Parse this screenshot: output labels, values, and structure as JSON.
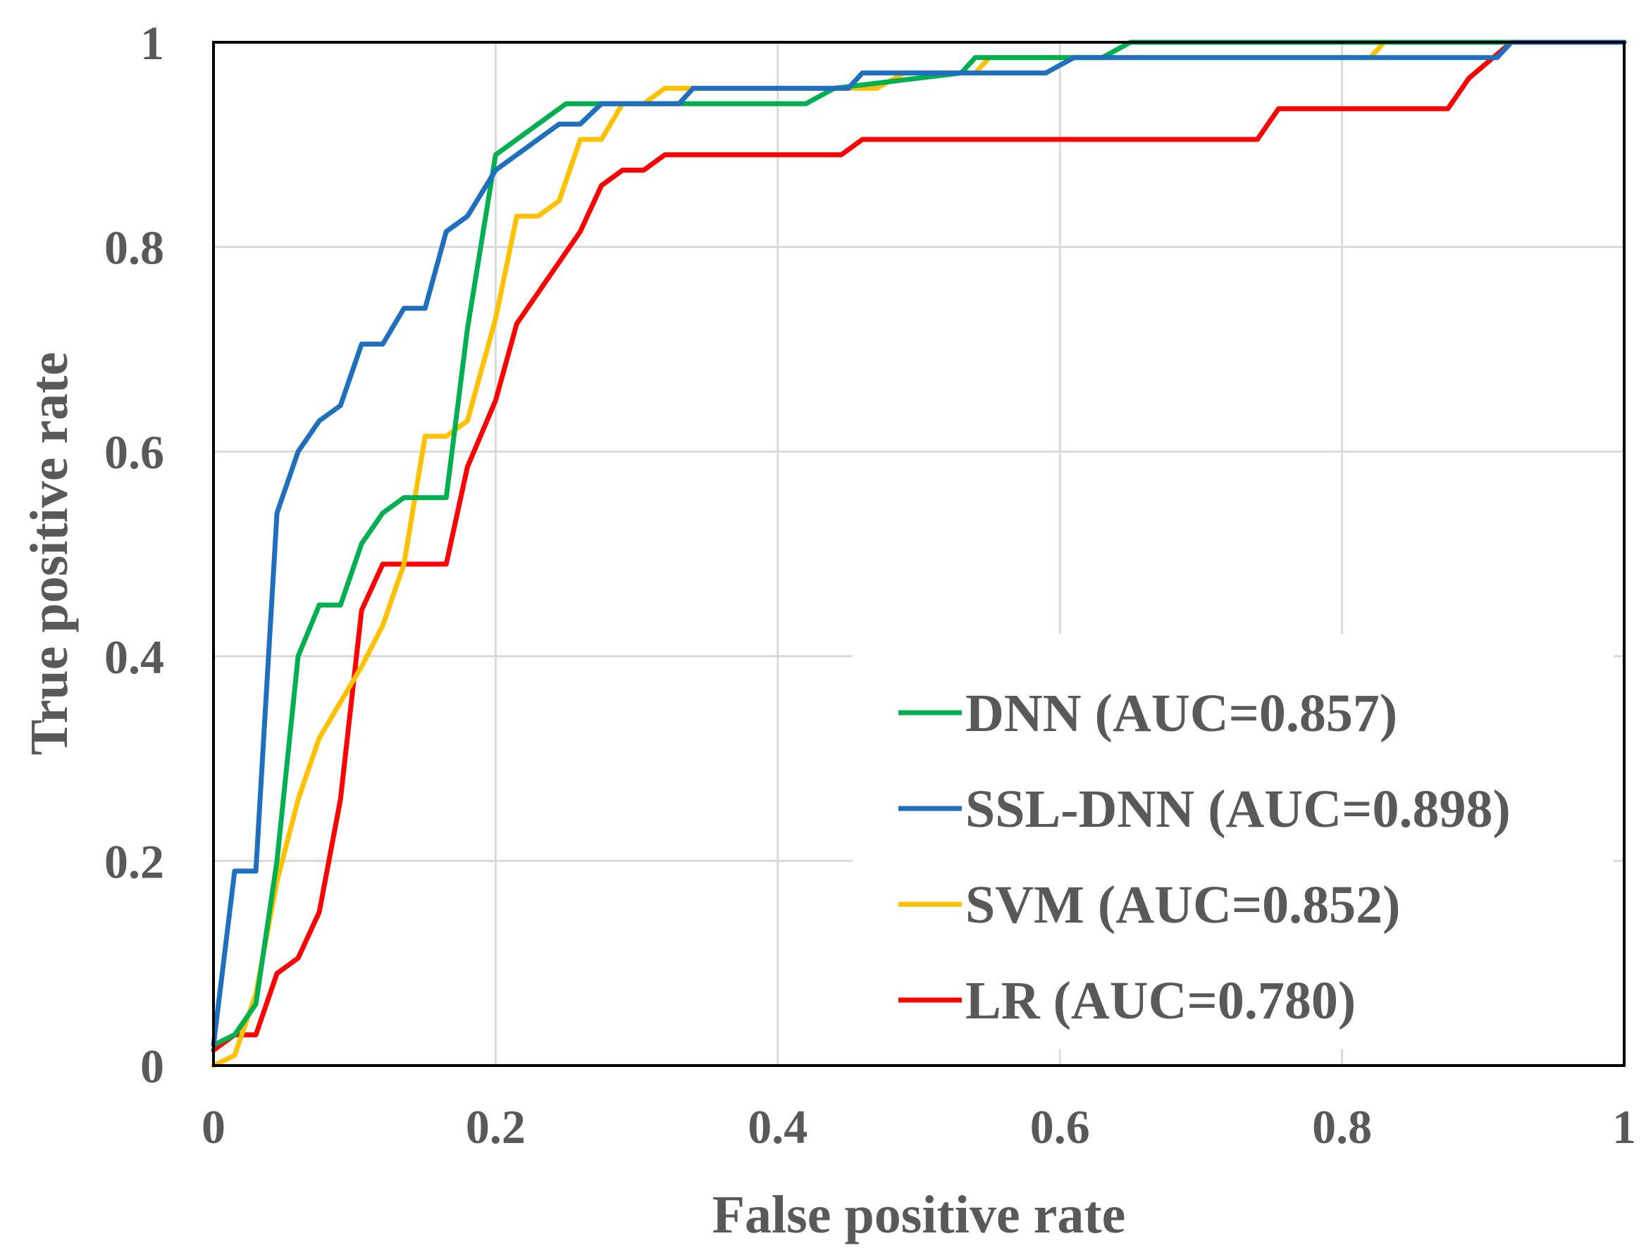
{
  "chart_data": {
    "type": "line",
    "title": "",
    "xlabel": "False positive rate",
    "ylabel": "True positive rate",
    "xlim": [
      0,
      1
    ],
    "ylim": [
      0,
      1
    ],
    "x_ticks": [
      "0",
      "0.2",
      "0.4",
      "0.6",
      "0.8",
      "1"
    ],
    "y_ticks": [
      "0",
      "0.2",
      "0.4",
      "0.6",
      "0.8",
      "1"
    ],
    "grid": true,
    "legend_position": "bottom-right",
    "series": [
      {
        "name": "DNN (AUC=0.857)",
        "color": "#00b050",
        "points": [
          [
            0,
            0.02
          ],
          [
            0.015,
            0.03
          ],
          [
            0.03,
            0.06
          ],
          [
            0.045,
            0.2
          ],
          [
            0.06,
            0.4
          ],
          [
            0.075,
            0.45
          ],
          [
            0.09,
            0.45
          ],
          [
            0.105,
            0.51
          ],
          [
            0.12,
            0.54
          ],
          [
            0.135,
            0.555
          ],
          [
            0.165,
            0.555
          ],
          [
            0.18,
            0.72
          ],
          [
            0.2,
            0.89
          ],
          [
            0.25,
            0.94
          ],
          [
            0.42,
            0.94
          ],
          [
            0.44,
            0.955
          ],
          [
            0.53,
            0.97
          ],
          [
            0.54,
            0.985
          ],
          [
            0.63,
            0.985
          ],
          [
            0.65,
            1
          ],
          [
            1,
            1
          ]
        ]
      },
      {
        "name": "SSL-DNN (AUC=0.898)",
        "color": "#1f6fbf",
        "points": [
          [
            0,
            0.02
          ],
          [
            0.015,
            0.19
          ],
          [
            0.03,
            0.19
          ],
          [
            0.045,
            0.54
          ],
          [
            0.06,
            0.6
          ],
          [
            0.075,
            0.63
          ],
          [
            0.09,
            0.645
          ],
          [
            0.105,
            0.705
          ],
          [
            0.12,
            0.705
          ],
          [
            0.135,
            0.74
          ],
          [
            0.15,
            0.74
          ],
          [
            0.165,
            0.815
          ],
          [
            0.18,
            0.83
          ],
          [
            0.2,
            0.875
          ],
          [
            0.245,
            0.92
          ],
          [
            0.26,
            0.92
          ],
          [
            0.275,
            0.94
          ],
          [
            0.33,
            0.94
          ],
          [
            0.34,
            0.955
          ],
          [
            0.45,
            0.955
          ],
          [
            0.46,
            0.97
          ],
          [
            0.59,
            0.97
          ],
          [
            0.61,
            0.985
          ],
          [
            0.91,
            0.985
          ],
          [
            0.92,
            1
          ],
          [
            1,
            1
          ]
        ]
      },
      {
        "name": "SVM (AUC=0.852)",
        "color": "#ffc000",
        "points": [
          [
            0,
            0
          ],
          [
            0.015,
            0.01
          ],
          [
            0.03,
            0.07
          ],
          [
            0.045,
            0.18
          ],
          [
            0.06,
            0.26
          ],
          [
            0.075,
            0.32
          ],
          [
            0.105,
            0.39
          ],
          [
            0.12,
            0.43
          ],
          [
            0.135,
            0.49
          ],
          [
            0.15,
            0.615
          ],
          [
            0.165,
            0.615
          ],
          [
            0.18,
            0.63
          ],
          [
            0.2,
            0.73
          ],
          [
            0.215,
            0.83
          ],
          [
            0.23,
            0.83
          ],
          [
            0.245,
            0.845
          ],
          [
            0.26,
            0.905
          ],
          [
            0.275,
            0.905
          ],
          [
            0.29,
            0.94
          ],
          [
            0.305,
            0.94
          ],
          [
            0.32,
            0.955
          ],
          [
            0.47,
            0.955
          ],
          [
            0.49,
            0.97
          ],
          [
            0.54,
            0.97
          ],
          [
            0.55,
            0.985
          ],
          [
            0.82,
            0.985
          ],
          [
            0.83,
            1
          ],
          [
            1,
            1
          ]
        ]
      },
      {
        "name": "LR (AUC=0.780)",
        "color": "#ff0000",
        "points": [
          [
            0,
            0.015
          ],
          [
            0.015,
            0.03
          ],
          [
            0.03,
            0.03
          ],
          [
            0.045,
            0.09
          ],
          [
            0.06,
            0.105
          ],
          [
            0.075,
            0.15
          ],
          [
            0.09,
            0.26
          ],
          [
            0.105,
            0.445
          ],
          [
            0.12,
            0.49
          ],
          [
            0.165,
            0.49
          ],
          [
            0.18,
            0.585
          ],
          [
            0.2,
            0.65
          ],
          [
            0.215,
            0.725
          ],
          [
            0.26,
            0.815
          ],
          [
            0.275,
            0.86
          ],
          [
            0.29,
            0.875
          ],
          [
            0.305,
            0.875
          ],
          [
            0.32,
            0.89
          ],
          [
            0.445,
            0.89
          ],
          [
            0.46,
            0.905
          ],
          [
            0.74,
            0.905
          ],
          [
            0.755,
            0.935
          ],
          [
            0.875,
            0.935
          ],
          [
            0.89,
            0.965
          ],
          [
            0.92,
            1
          ],
          [
            1,
            1
          ]
        ]
      }
    ]
  }
}
